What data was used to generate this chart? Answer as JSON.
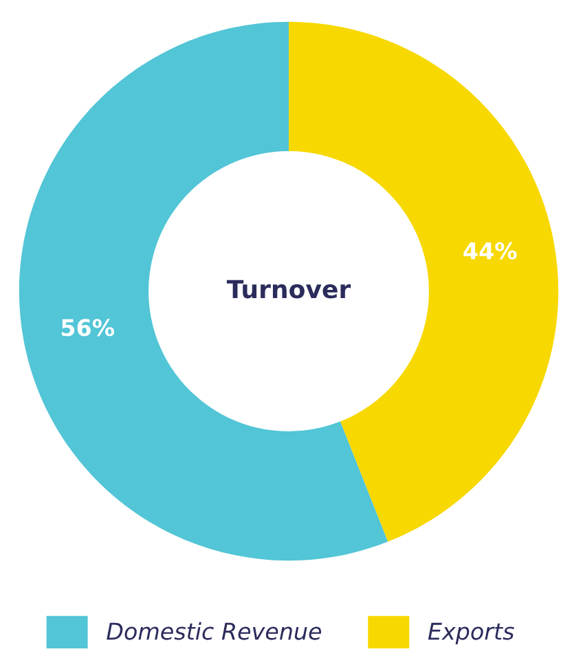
{
  "chart_data": {
    "type": "donut",
    "title": "Turnover",
    "categories": [
      "Domestic Revenue",
      "Exports"
    ],
    "values": [
      56,
      44
    ],
    "colors": [
      "#52c5d6",
      "#f7d800"
    ],
    "value_labels": [
      "56%",
      "44%"
    ],
    "legend": "bottom"
  }
}
